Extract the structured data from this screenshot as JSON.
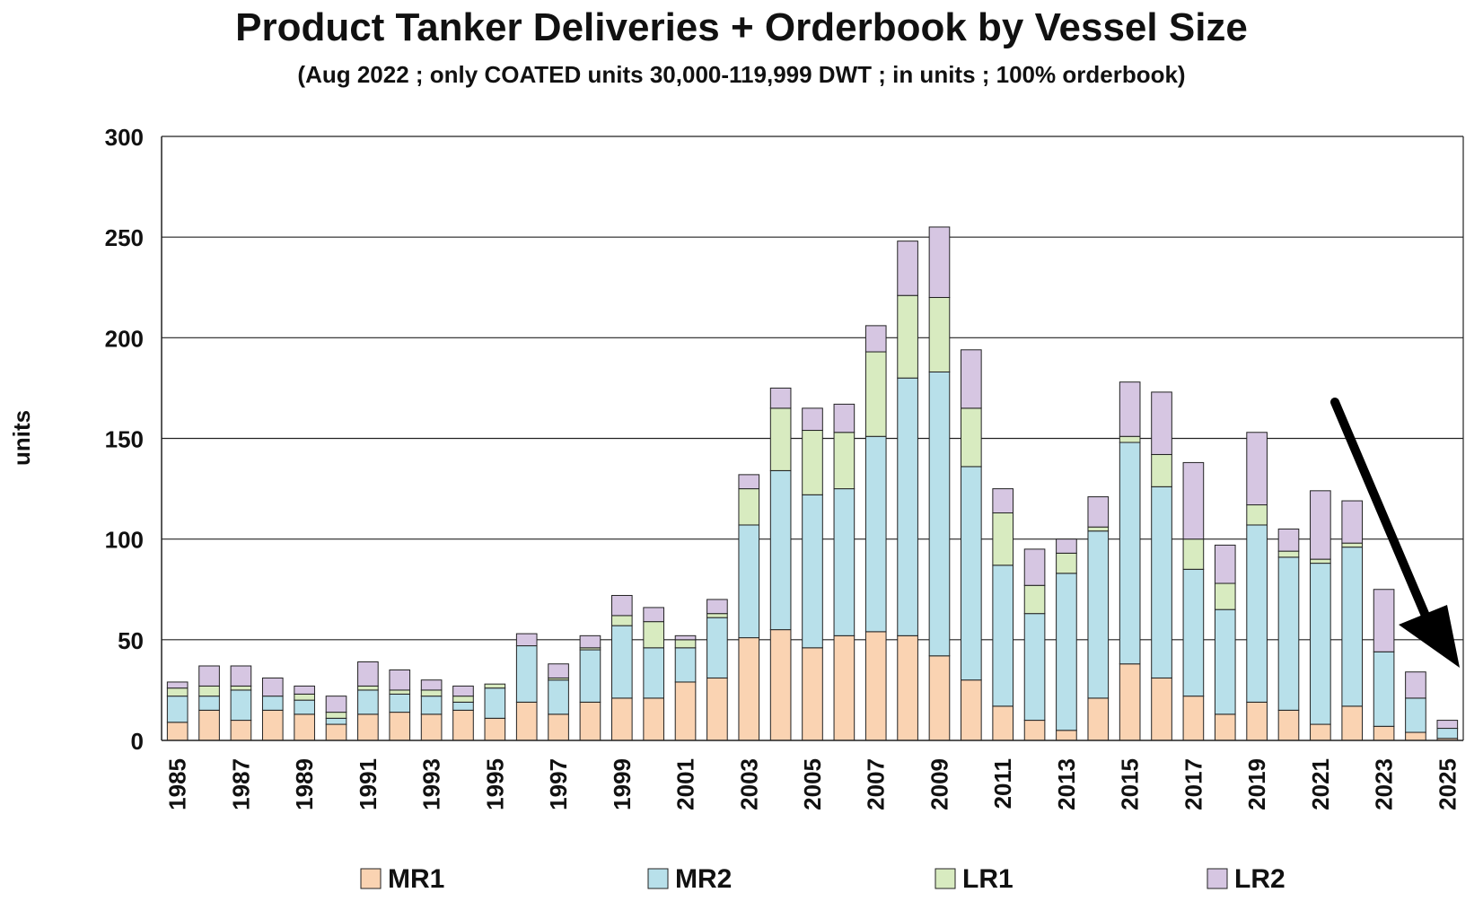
{
  "chart_data": {
    "type": "bar",
    "stacked": true,
    "title": "Product Tanker Deliveries + Orderbook by Vessel Size",
    "subtitle": "(Aug 2022 ; only COATED units 30,000-119,999 DWT ; in units ; 100% orderbook)",
    "xlabel": "",
    "ylabel": "units",
    "ylim": [
      0,
      300
    ],
    "yticks": [
      "0",
      "50",
      "100",
      "150",
      "200",
      "250",
      "300"
    ],
    "grid": true,
    "legend_position": "bottom",
    "categories": [
      "1985",
      "1986",
      "1987",
      "1988",
      "1989",
      "1990",
      "1991",
      "1992",
      "1993",
      "1994",
      "1995",
      "1996",
      "1997",
      "1998",
      "1999",
      "2000",
      "2001",
      "2002",
      "2003",
      "2004",
      "2005",
      "2006",
      "2007",
      "2008",
      "2009",
      "2010",
      "2011",
      "2012",
      "2013",
      "2014",
      "2015",
      "2016",
      "2017",
      "2018",
      "2019",
      "2020",
      "2021",
      "2022",
      "2023",
      "2024",
      "2025"
    ],
    "xtick_labels": [
      "1985",
      "1987",
      "1989",
      "1991",
      "1993",
      "1995",
      "1997",
      "1999",
      "2001",
      "2003",
      "2005",
      "2007",
      "2009",
      "2011",
      "2013",
      "2015",
      "2017",
      "2019",
      "2021",
      "2023",
      "2025"
    ],
    "series": [
      {
        "name": "MR1",
        "color": "#FAD3B2",
        "values": [
          9,
          15,
          10,
          15,
          13,
          8,
          13,
          14,
          13,
          15,
          11,
          19,
          13,
          19,
          21,
          21,
          29,
          31,
          51,
          55,
          46,
          52,
          54,
          52,
          42,
          30,
          17,
          10,
          5,
          21,
          38,
          31,
          22,
          13,
          19,
          15,
          8,
          17,
          7,
          4,
          1
        ]
      },
      {
        "name": "MR2",
        "color": "#B8E0EA",
        "values": [
          13,
          7,
          15,
          7,
          7,
          3,
          12,
          9,
          9,
          4,
          15,
          28,
          17,
          26,
          36,
          25,
          17,
          30,
          56,
          79,
          76,
          73,
          97,
          128,
          141,
          106,
          70,
          53,
          78,
          83,
          110,
          95,
          63,
          52,
          88,
          76,
          80,
          79,
          37,
          17,
          5
        ]
      },
      {
        "name": "LR1",
        "color": "#D8EBC0",
        "values": [
          4,
          5,
          2,
          0,
          3,
          3,
          2,
          2,
          3,
          3,
          2,
          0,
          1,
          1,
          5,
          13,
          4,
          2,
          18,
          31,
          32,
          28,
          42,
          41,
          37,
          29,
          26,
          14,
          10,
          2,
          3,
          16,
          15,
          13,
          10,
          3,
          2,
          2,
          0,
          0,
          0
        ]
      },
      {
        "name": "LR2",
        "color": "#D6C6E2",
        "values": [
          3,
          10,
          10,
          9,
          4,
          8,
          12,
          10,
          5,
          5,
          0,
          6,
          7,
          6,
          10,
          7,
          2,
          7,
          7,
          10,
          11,
          14,
          13,
          27,
          35,
          29,
          12,
          18,
          7,
          15,
          27,
          31,
          38,
          19,
          36,
          11,
          34,
          21,
          31,
          13,
          4
        ]
      }
    ],
    "annotations": [
      {
        "type": "arrow",
        "color": "#000000",
        "direction": "down-right",
        "points_to": "2025"
      }
    ]
  }
}
